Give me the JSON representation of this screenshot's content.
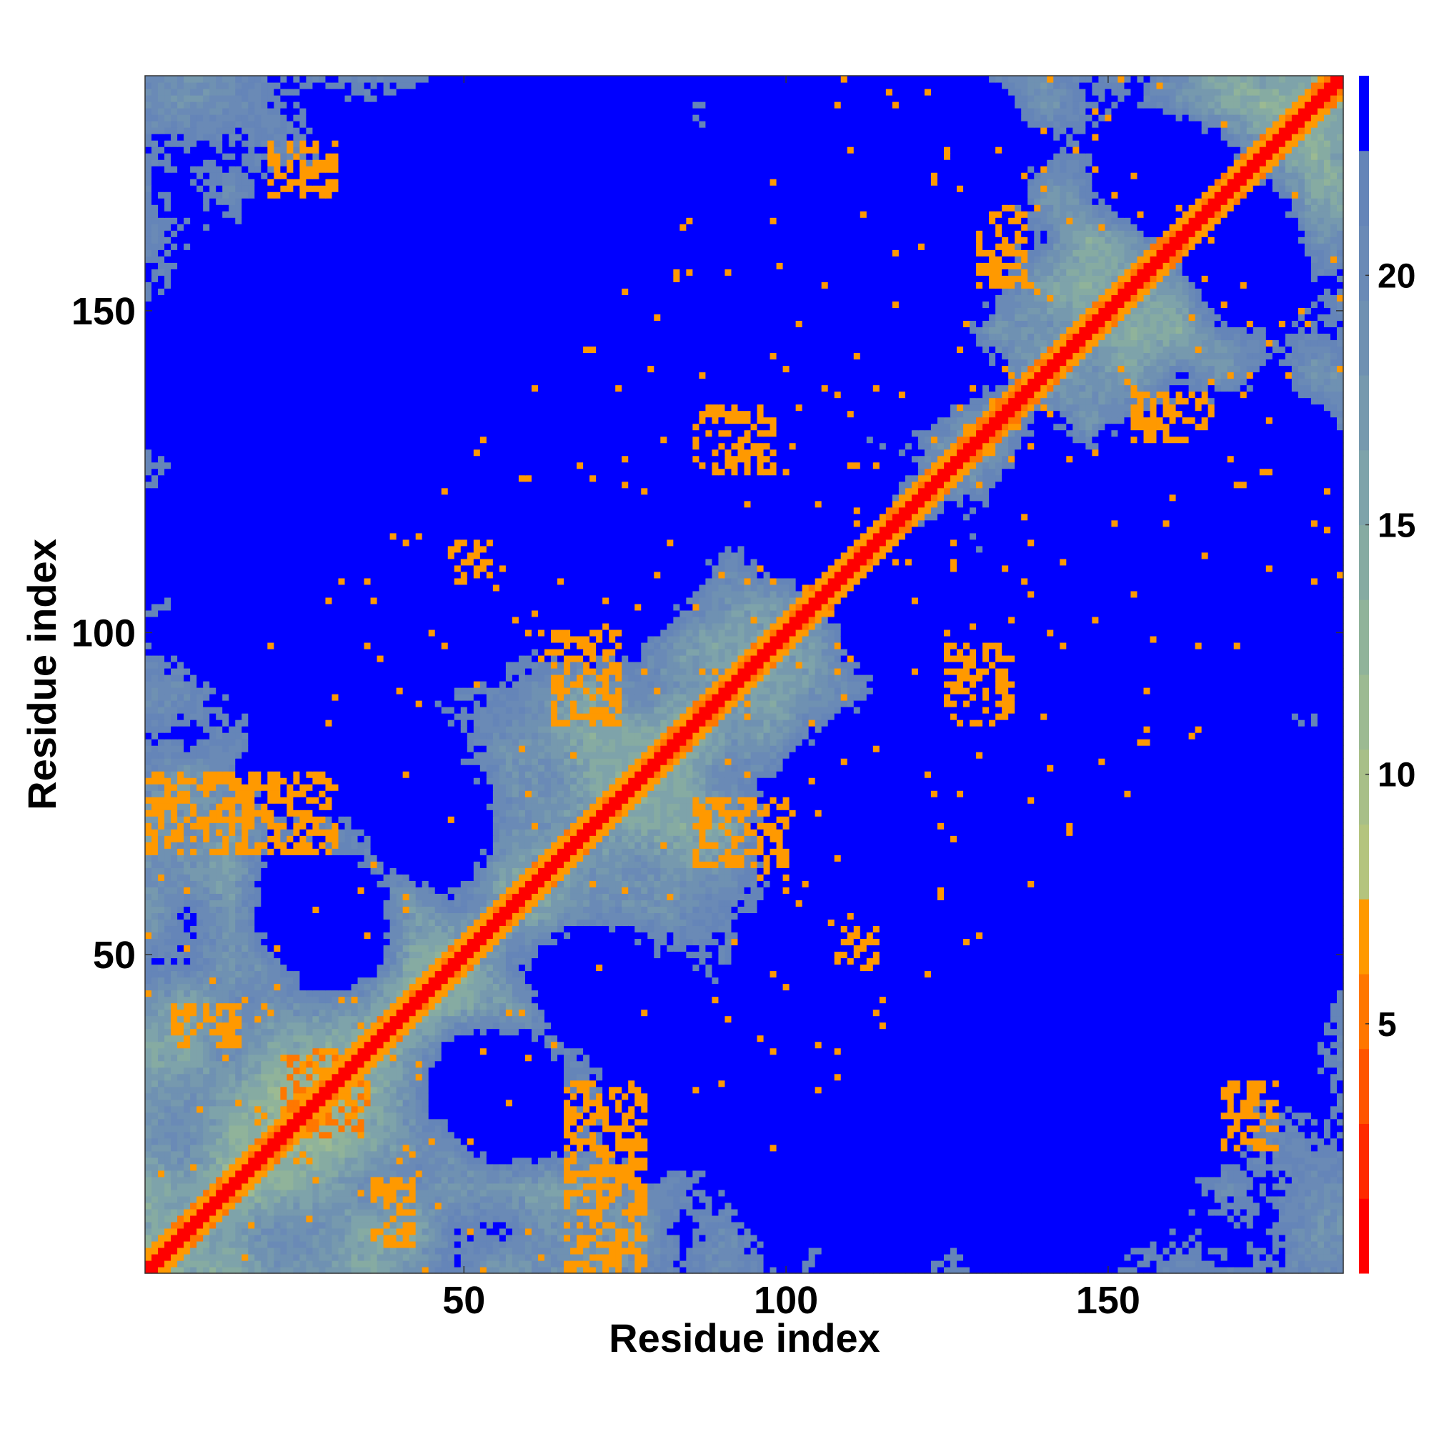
{
  "chart_data": {
    "type": "heatmap",
    "title": "",
    "xlabel": "Residue index",
    "ylabel": "Residue index",
    "n_residues": 186,
    "xlim": [
      1,
      186
    ],
    "ylim": [
      1,
      186
    ],
    "x_ticks": [
      50,
      100,
      150
    ],
    "x_tick_labels": [
      "50",
      "100",
      "150"
    ],
    "y_ticks": [
      50,
      100,
      150
    ],
    "y_tick_labels": [
      "50",
      "100",
      "150"
    ],
    "grid": false,
    "colorbar": {
      "position": "right",
      "range": [
        0,
        24
      ],
      "ticks": [
        5,
        10,
        15,
        20
      ],
      "tick_labels": [
        "5",
        "10",
        "15",
        "20"
      ],
      "levels": [
        {
          "from": 0,
          "to": 1.5,
          "color": "#ff0000"
        },
        {
          "from": 1.5,
          "to": 3,
          "color": "#ff2a00"
        },
        {
          "from": 3,
          "to": 4.5,
          "color": "#ff5500"
        },
        {
          "from": 4.5,
          "to": 6,
          "color": "#ff7700"
        },
        {
          "from": 6,
          "to": 7.5,
          "color": "#ff9900"
        },
        {
          "from": 7.5,
          "to": 9,
          "color": "#b4c47e"
        },
        {
          "from": 9,
          "to": 10.5,
          "color": "#a8bf88"
        },
        {
          "from": 10.5,
          "to": 12,
          "color": "#9cba92"
        },
        {
          "from": 12,
          "to": 13.5,
          "color": "#90b39a"
        },
        {
          "from": 13.5,
          "to": 15,
          "color": "#86aba2"
        },
        {
          "from": 15,
          "to": 16.5,
          "color": "#7ea3aa"
        },
        {
          "from": 16.5,
          "to": 18,
          "color": "#7699ae"
        },
        {
          "from": 18,
          "to": 19.5,
          "color": "#6f91b2"
        },
        {
          "from": 19.5,
          "to": 21,
          "color": "#6a8ab6"
        },
        {
          "from": 21,
          "to": 22.5,
          "color": "#6585b8"
        },
        {
          "from": 22.5,
          "to": 24,
          "color": "#0000ff"
        }
      ]
    },
    "contact_features": [
      {
        "kind": "diagonal",
        "description": "main diagonal, distance ~0",
        "range": [
          1,
          186
        ]
      },
      {
        "kind": "band",
        "i": [
          1,
          30
        ],
        "j": [
          66,
          78
        ],
        "dist": 6
      },
      {
        "kind": "band",
        "i": [
          22,
          35
        ],
        "j": [
          22,
          35
        ],
        "dist": 5
      },
      {
        "kind": "band",
        "i": [
          64,
          74
        ],
        "j": [
          86,
          100
        ],
        "dist": 6
      },
      {
        "kind": "band",
        "i": [
          86,
          96
        ],
        "j": [
          64,
          74
        ],
        "dist": 6
      },
      {
        "kind": "band",
        "i": [
          88,
          96
        ],
        "j": [
          126,
          134
        ],
        "dist": 6
      },
      {
        "kind": "band",
        "i": [
          126,
          134
        ],
        "j": [
          88,
          96
        ],
        "dist": 6
      },
      {
        "kind": "band",
        "i": [
          132,
          137
        ],
        "j": [
          157,
          166
        ],
        "dist": 6
      },
      {
        "kind": "band",
        "i": [
          154,
          162
        ],
        "j": [
          130,
          137
        ],
        "dist": 6
      },
      {
        "kind": "band",
        "i": [
          125,
          135
        ],
        "j": [
          86,
          98
        ],
        "dist": 6
      },
      {
        "kind": "band",
        "i": [
          36,
          42
        ],
        "j": [
          5,
          15
        ],
        "dist": 6
      },
      {
        "kind": "band",
        "i": [
          66,
          72
        ],
        "j": [
          3,
          8
        ],
        "dist": 6
      },
      {
        "kind": "cluster",
        "i": [
          48,
          54
        ],
        "j": [
          108,
          114
        ],
        "dist": 6
      },
      {
        "kind": "cluster",
        "i": [
          108,
          114
        ],
        "j": [
          48,
          54
        ],
        "dist": 6
      },
      {
        "kind": "cluster",
        "i": [
          20,
          30
        ],
        "j": [
          168,
          176
        ],
        "dist": 6
      },
      {
        "kind": "cluster",
        "i": [
          168,
          176
        ],
        "j": [
          20,
          30
        ],
        "dist": 6
      }
    ]
  }
}
